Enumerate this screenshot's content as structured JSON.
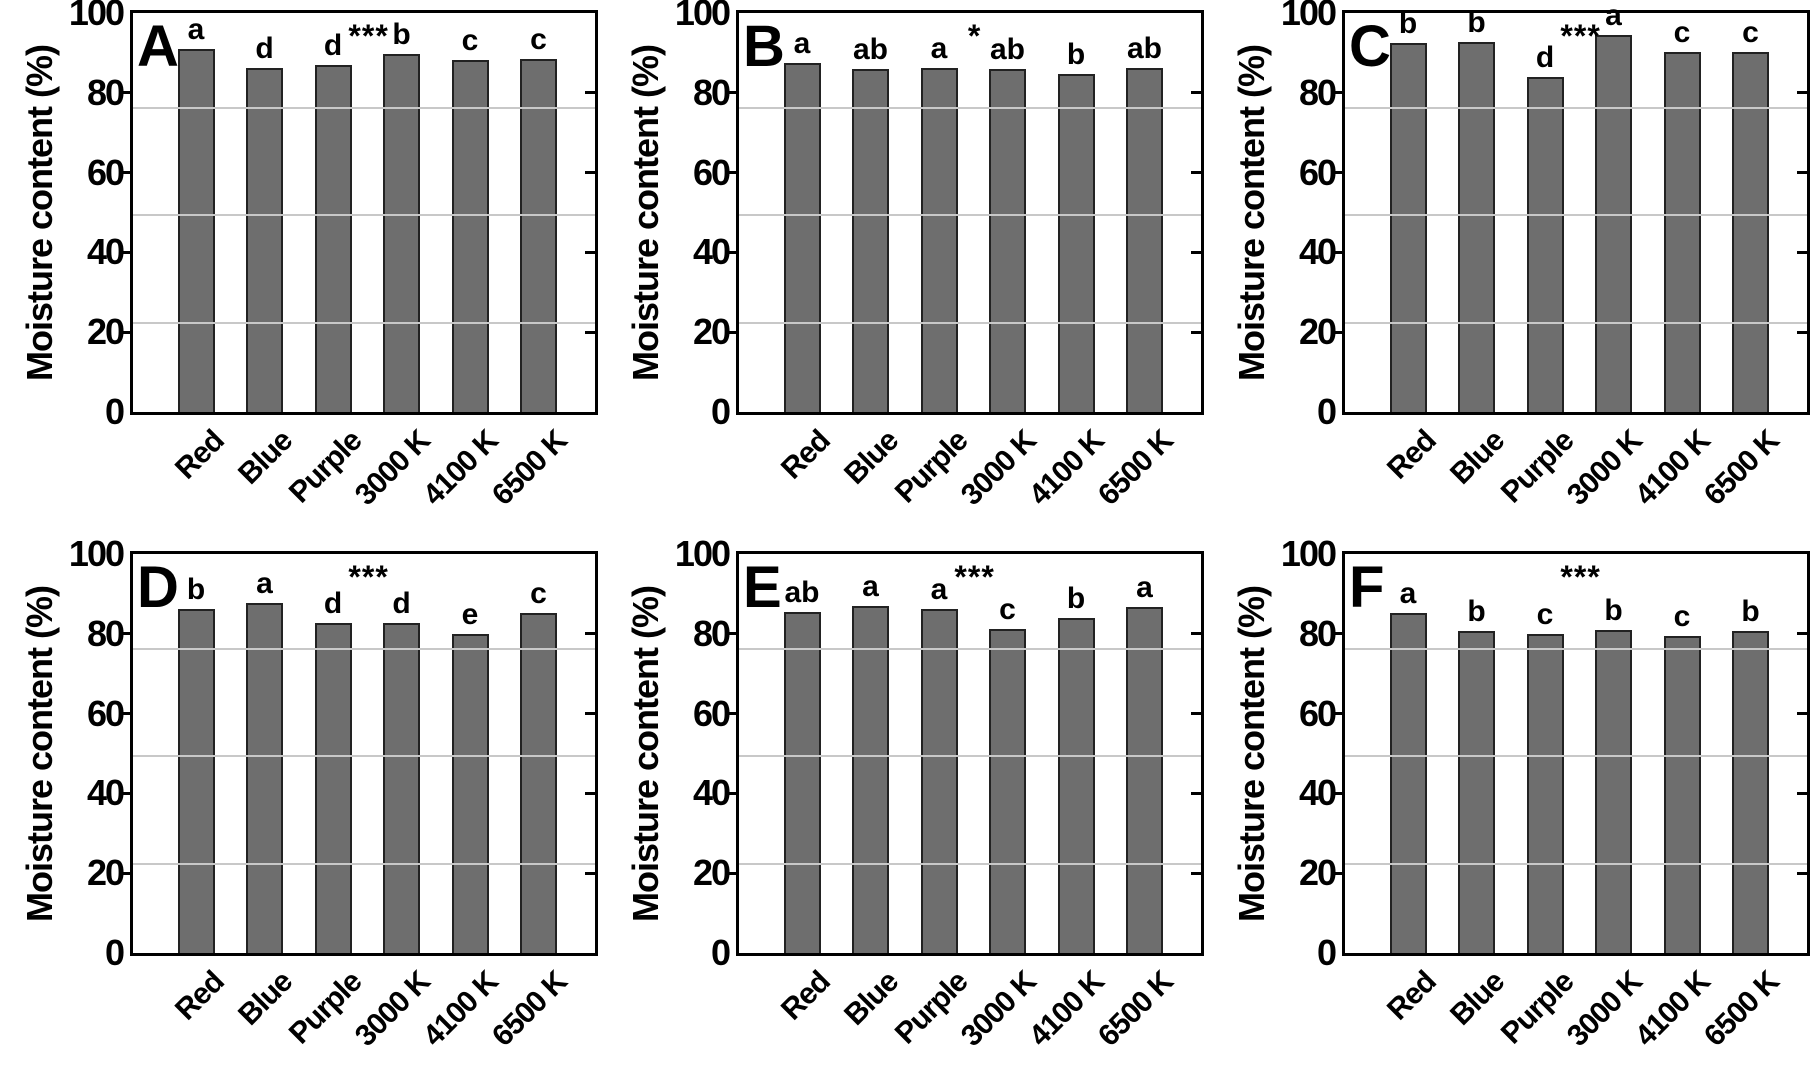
{
  "style": {
    "bar_fill": "#6e6e6e",
    "bar_border": "#222222",
    "frame_color": "#000000",
    "gridline_color": "#c8c8c8",
    "background": "#ffffff",
    "text_color": "#000000"
  },
  "chart_data": [
    {
      "type": "bar",
      "panel_label": "A",
      "significance": "***",
      "title": "",
      "xlabel": "",
      "ylabel": "Moisture content (%)",
      "categories": [
        "Red",
        "Blue",
        "Purple",
        "3000 K",
        "4100 K",
        "6500 K"
      ],
      "values": [
        91.0,
        86.2,
        87.0,
        89.8,
        88.3,
        88.4
      ],
      "bar_letters": [
        "a",
        "d",
        "d",
        "b",
        "c",
        "c"
      ],
      "ylim": [
        0,
        100
      ],
      "yticks": [
        0,
        20,
        40,
        60,
        80,
        100
      ],
      "gridline_values": [
        22.5,
        49.5,
        76.5
      ],
      "legend": "none",
      "grid": "faint horizontal"
    },
    {
      "type": "bar",
      "panel_label": "B",
      "significance": "*",
      "title": "",
      "xlabel": "",
      "ylabel": "Moisture content (%)",
      "categories": [
        "Red",
        "Blue",
        "Purple",
        "3000 K",
        "4100 K",
        "6500 K"
      ],
      "values": [
        87.4,
        86.0,
        86.2,
        86.0,
        84.8,
        86.1
      ],
      "bar_letters": [
        "a",
        "ab",
        "a",
        "ab",
        "b",
        "ab"
      ],
      "ylim": [
        0,
        100
      ],
      "yticks": [
        0,
        20,
        40,
        60,
        80,
        100
      ],
      "gridline_values": [
        22.5,
        49.5,
        76.5
      ],
      "legend": "none",
      "grid": "faint horizontal"
    },
    {
      "type": "bar",
      "panel_label": "C",
      "significance": "***",
      "title": "",
      "xlabel": "",
      "ylabel": "Moisture content (%)",
      "categories": [
        "Red",
        "Blue",
        "Purple",
        "3000 K",
        "4100 K",
        "6500 K"
      ],
      "values": [
        92.4,
        92.8,
        83.9,
        94.5,
        90.3,
        90.2
      ],
      "bar_letters": [
        "b",
        "b",
        "d",
        "a",
        "c",
        "c"
      ],
      "ylim": [
        0,
        100
      ],
      "yticks": [
        0,
        20,
        40,
        60,
        80,
        100
      ],
      "gridline_values": [
        22.5,
        49.5,
        76.5
      ],
      "legend": "none",
      "grid": "faint horizontal"
    },
    {
      "type": "bar",
      "panel_label": "D",
      "significance": "***",
      "title": "",
      "xlabel": "",
      "ylabel": "Moisture content (%)",
      "categories": [
        "Red",
        "Blue",
        "Purple",
        "3000 K",
        "4100 K",
        "6500 K"
      ],
      "values": [
        86.2,
        87.7,
        82.6,
        82.6,
        80.0,
        85.1
      ],
      "bar_letters": [
        "b",
        "a",
        "d",
        "d",
        "e",
        "c"
      ],
      "ylim": [
        0,
        100
      ],
      "yticks": [
        0,
        20,
        40,
        60,
        80,
        100
      ],
      "gridline_values": [
        22.5,
        49.5,
        76.5
      ],
      "legend": "none",
      "grid": "faint horizontal"
    },
    {
      "type": "bar",
      "panel_label": "E",
      "significance": "***",
      "title": "",
      "xlabel": "",
      "ylabel": "Moisture content (%)",
      "categories": [
        "Red",
        "Blue",
        "Purple",
        "3000 K",
        "4100 K",
        "6500 K"
      ],
      "values": [
        85.5,
        87.0,
        86.1,
        81.3,
        84.0,
        86.7
      ],
      "bar_letters": [
        "ab",
        "a",
        "a",
        "c",
        "b",
        "a"
      ],
      "ylim": [
        0,
        100
      ],
      "yticks": [
        0,
        20,
        40,
        60,
        80,
        100
      ],
      "gridline_values": [
        22.5,
        49.5,
        76.5
      ],
      "legend": "none",
      "grid": "faint horizontal"
    },
    {
      "type": "bar",
      "panel_label": "F",
      "significance": "***",
      "title": "",
      "xlabel": "",
      "ylabel": "Moisture content (%)",
      "categories": [
        "Red",
        "Blue",
        "Purple",
        "3000 K",
        "4100 K",
        "6500 K"
      ],
      "values": [
        85.3,
        80.8,
        79.9,
        80.9,
        79.4,
        80.7
      ],
      "bar_letters": [
        "a",
        "b",
        "c",
        "b",
        "c",
        "b"
      ],
      "ylim": [
        0,
        100
      ],
      "yticks": [
        0,
        20,
        40,
        60,
        80,
        100
      ],
      "gridline_values": [
        22.5,
        49.5,
        76.5
      ],
      "legend": "none",
      "grid": "faint horizontal"
    }
  ]
}
